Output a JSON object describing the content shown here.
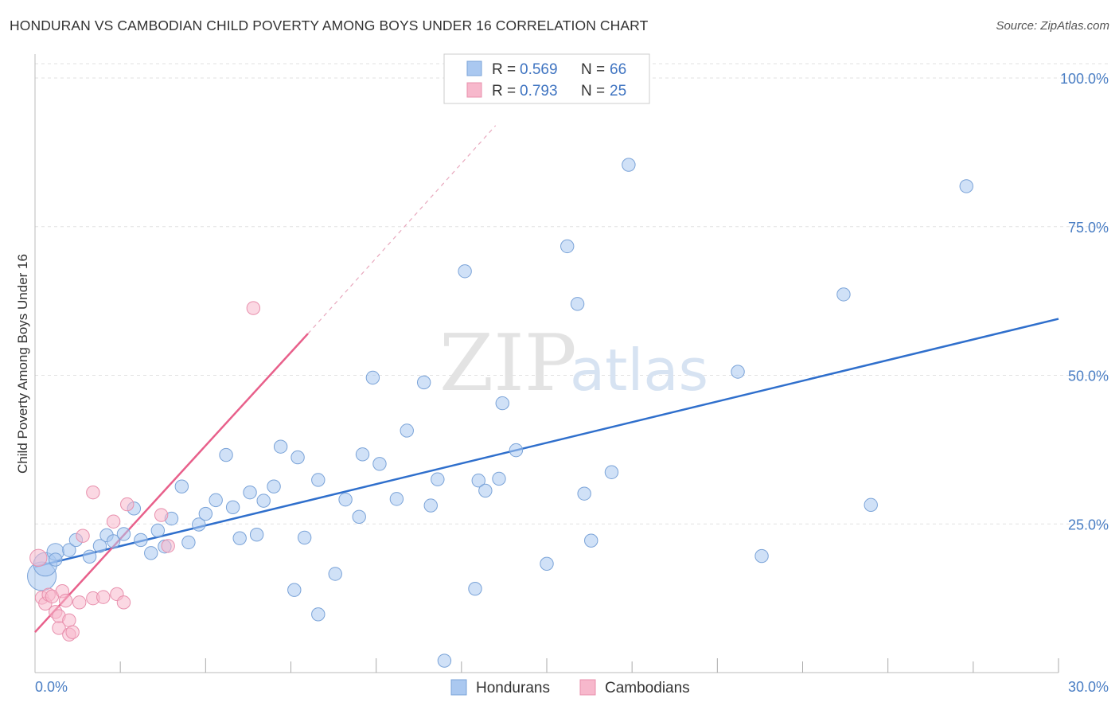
{
  "header": {
    "title": "HONDURAN VS CAMBODIAN CHILD POVERTY AMONG BOYS UNDER 16 CORRELATION CHART",
    "source": "Source: ZipAtlas.com"
  },
  "watermark": {
    "part1": "ZIP",
    "part2": "atlas"
  },
  "legend": {
    "rows": [
      {
        "r_label": "R =",
        "r_value": "0.569",
        "n_label": "N =",
        "n_value": "66",
        "color": "#aac8f0",
        "stroke": "#7aa3d8"
      },
      {
        "r_label": "R =",
        "r_value": "0.793",
        "n_label": "N =",
        "n_value": "25",
        "color": "#f7b8cc",
        "stroke": "#e890ad"
      }
    ]
  },
  "bottom_legend": {
    "items": [
      {
        "label": "Hondurans",
        "color": "#aac8f0",
        "stroke": "#7aa3d8"
      },
      {
        "label": "Cambodians",
        "color": "#f7b8cc",
        "stroke": "#e890ad"
      }
    ]
  },
  "chart_data": {
    "type": "scatter",
    "xlabel": "",
    "ylabel": "Child Poverty Among Boys Under 16",
    "xlim": [
      0,
      30
    ],
    "ylim": [
      0,
      100
    ],
    "x_tick_labels": [
      {
        "value": 0,
        "label": "0.0%"
      },
      {
        "value": 30,
        "label": "30.0%"
      }
    ],
    "y_tick_labels": [
      {
        "value": 25,
        "label": "25.0%"
      },
      {
        "value": 50,
        "label": "50.0%"
      },
      {
        "value": 75,
        "label": "75.0%"
      },
      {
        "value": 100,
        "label": "100.0%"
      }
    ],
    "grid": true,
    "legend_position": "top-center",
    "series": [
      {
        "name": "Hondurans",
        "color": "#aac8f0",
        "stroke": "#7aa3d8",
        "trend_color": "#2f6fcc",
        "trend": {
          "x0": 0,
          "y0": 17.8,
          "x1": 30,
          "y1": 59.5
        },
        "points": [
          [
            0.2,
            16.2
          ],
          [
            0.3,
            18.2
          ],
          [
            0.6,
            20.3
          ],
          [
            1.0,
            20.6
          ],
          [
            1.2,
            22.3
          ],
          [
            1.6,
            19.5
          ],
          [
            1.9,
            21.3
          ],
          [
            2.1,
            23.1
          ],
          [
            2.3,
            22.1
          ],
          [
            2.6,
            23.3
          ],
          [
            2.9,
            27.6
          ],
          [
            3.1,
            22.3
          ],
          [
            3.4,
            20.1
          ],
          [
            3.6,
            23.9
          ],
          [
            3.8,
            21.2
          ],
          [
            4.0,
            25.9
          ],
          [
            4.3,
            31.3
          ],
          [
            4.5,
            21.9
          ],
          [
            4.8,
            24.9
          ],
          [
            5.0,
            26.7
          ],
          [
            5.3,
            29.0
          ],
          [
            5.6,
            36.6
          ],
          [
            5.8,
            27.8
          ],
          [
            6.0,
            22.6
          ],
          [
            6.3,
            30.3
          ],
          [
            6.5,
            23.2
          ],
          [
            6.7,
            28.9
          ],
          [
            7.0,
            31.3
          ],
          [
            7.2,
            38.0
          ],
          [
            7.6,
            13.9
          ],
          [
            7.7,
            36.2
          ],
          [
            7.9,
            22.7
          ],
          [
            8.3,
            32.4
          ],
          [
            8.3,
            9.8
          ],
          [
            8.8,
            16.6
          ],
          [
            9.1,
            29.1
          ],
          [
            9.5,
            26.2
          ],
          [
            9.6,
            36.7
          ],
          [
            9.9,
            49.6
          ],
          [
            10.1,
            35.1
          ],
          [
            10.6,
            29.2
          ],
          [
            10.9,
            40.7
          ],
          [
            11.4,
            48.8
          ],
          [
            11.6,
            28.1
          ],
          [
            11.8,
            32.5
          ],
          [
            12.0,
            2.0
          ],
          [
            12.6,
            67.5
          ],
          [
            12.9,
            14.1
          ],
          [
            13.0,
            32.3
          ],
          [
            13.2,
            30.6
          ],
          [
            13.6,
            32.6
          ],
          [
            13.7,
            45.3
          ],
          [
            14.1,
            37.4
          ],
          [
            15.0,
            18.3
          ],
          [
            15.6,
            71.7
          ],
          [
            15.9,
            62.0
          ],
          [
            16.1,
            30.1
          ],
          [
            16.3,
            22.2
          ],
          [
            16.9,
            33.7
          ],
          [
            17.4,
            85.4
          ],
          [
            20.6,
            50.6
          ],
          [
            21.3,
            19.6
          ],
          [
            23.7,
            63.6
          ],
          [
            24.5,
            28.2
          ],
          [
            27.3,
            81.8
          ],
          [
            0.6,
            19.0
          ]
        ],
        "sizes": [
          22,
          18,
          13,
          10,
          10,
          10,
          10,
          10,
          10,
          10,
          10,
          10,
          10,
          10,
          10,
          10,
          10,
          10,
          10,
          10,
          10,
          10,
          10,
          10,
          10,
          10,
          10,
          10,
          10,
          10,
          10,
          10,
          10,
          10,
          10,
          10,
          10,
          10,
          10,
          10,
          10,
          10,
          10,
          10,
          10,
          10,
          10,
          10,
          10,
          10,
          10,
          10,
          10,
          10,
          10,
          10,
          10,
          10,
          10,
          10,
          10,
          10,
          10,
          10,
          10,
          10
        ]
      },
      {
        "name": "Cambodians",
        "color": "#f7b8cc",
        "stroke": "#e890ad",
        "trend_color": "#e8608b",
        "trend": {
          "x0": 0,
          "y0": 6.8,
          "x1": 8.0,
          "y1": 57.0
        },
        "trend_extension": {
          "x0": 8.0,
          "y0": 57.0,
          "x1": 13.5,
          "y1": 92.0
        },
        "points": [
          [
            0.1,
            19.3
          ],
          [
            0.2,
            12.6
          ],
          [
            0.3,
            11.6
          ],
          [
            0.4,
            13.1
          ],
          [
            0.5,
            12.8
          ],
          [
            0.6,
            10.2
          ],
          [
            0.7,
            7.5
          ],
          [
            0.7,
            9.5
          ],
          [
            0.8,
            13.7
          ],
          [
            0.9,
            12.1
          ],
          [
            1.0,
            8.8
          ],
          [
            1.0,
            6.4
          ],
          [
            1.1,
            6.8
          ],
          [
            1.3,
            11.8
          ],
          [
            1.4,
            23.0
          ],
          [
            1.7,
            12.5
          ],
          [
            1.7,
            30.3
          ],
          [
            2.0,
            12.7
          ],
          [
            2.3,
            25.4
          ],
          [
            2.4,
            13.2
          ],
          [
            2.6,
            11.8
          ],
          [
            2.7,
            28.3
          ],
          [
            3.7,
            26.5
          ],
          [
            3.9,
            21.3
          ],
          [
            6.4,
            61.3
          ]
        ],
        "sizes": [
          13,
          10,
          10,
          10,
          10,
          10,
          10,
          10,
          10,
          10,
          10,
          10,
          10,
          10,
          10,
          10,
          10,
          10,
          10,
          10,
          10,
          10,
          10,
          10,
          10
        ]
      }
    ]
  }
}
